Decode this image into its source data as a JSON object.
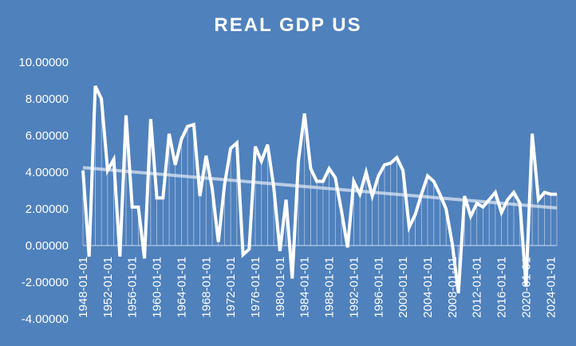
{
  "chart_data": {
    "type": "line",
    "title": "REAL GDP US",
    "xlabel": "",
    "ylabel": "",
    "ylim": [
      -4,
      10
    ],
    "y_ticks": [
      "-4.00000",
      "-2.00000",
      "0.00000",
      "2.00000",
      "4.00000",
      "6.00000",
      "8.00000",
      "10.00000"
    ],
    "x_tick_labels": [
      "1948-01-01",
      "1952-01-01",
      "1956-01-01",
      "1960-01-01",
      "1964-01-01",
      "1968-01-01",
      "1972-01-01",
      "1976-01-01",
      "1980-01-01",
      "1984-01-01",
      "1988-01-01",
      "1992-01-01",
      "1996-01-01",
      "2000-01-01",
      "2004-01-01",
      "2008-01-01",
      "2012-01-01",
      "2016-01-01",
      "2020-01-01",
      "2024-01-01"
    ],
    "x": [
      "1948-01-01",
      "1949-01-01",
      "1950-01-01",
      "1951-01-01",
      "1952-01-01",
      "1953-01-01",
      "1954-01-01",
      "1955-01-01",
      "1956-01-01",
      "1957-01-01",
      "1958-01-01",
      "1959-01-01",
      "1960-01-01",
      "1961-01-01",
      "1962-01-01",
      "1963-01-01",
      "1964-01-01",
      "1965-01-01",
      "1966-01-01",
      "1967-01-01",
      "1968-01-01",
      "1969-01-01",
      "1970-01-01",
      "1971-01-01",
      "1972-01-01",
      "1973-01-01",
      "1974-01-01",
      "1975-01-01",
      "1976-01-01",
      "1977-01-01",
      "1978-01-01",
      "1979-01-01",
      "1980-01-01",
      "1981-01-01",
      "1982-01-01",
      "1983-01-01",
      "1984-01-01",
      "1985-01-01",
      "1986-01-01",
      "1987-01-01",
      "1988-01-01",
      "1989-01-01",
      "1990-01-01",
      "1991-01-01",
      "1992-01-01",
      "1993-01-01",
      "1994-01-01",
      "1995-01-01",
      "1996-01-01",
      "1997-01-01",
      "1998-01-01",
      "1999-01-01",
      "2000-01-01",
      "2001-01-01",
      "2002-01-01",
      "2003-01-01",
      "2004-01-01",
      "2005-01-01",
      "2006-01-01",
      "2007-01-01",
      "2008-01-01",
      "2009-01-01",
      "2010-01-01",
      "2011-01-01",
      "2012-01-01",
      "2013-01-01",
      "2014-01-01",
      "2015-01-01",
      "2016-01-01",
      "2017-01-01",
      "2018-01-01",
      "2019-01-01",
      "2020-01-01",
      "2021-01-01",
      "2022-01-01",
      "2023-01-01",
      "2024-01-01",
      "2025-01-01"
    ],
    "series": [
      {
        "values": [
          4.1,
          -0.6,
          8.7,
          8.0,
          4.1,
          4.7,
          -0.6,
          7.1,
          2.1,
          2.1,
          -0.7,
          6.9,
          2.6,
          2.6,
          6.1,
          4.4,
          5.8,
          6.5,
          6.6,
          2.7,
          4.9,
          3.1,
          0.2,
          3.3,
          5.3,
          5.6,
          -0.5,
          -0.2,
          5.4,
          4.6,
          5.5,
          3.2,
          -0.3,
          2.5,
          -1.8,
          4.6,
          7.2,
          4.2,
          3.5,
          3.5,
          4.2,
          3.7,
          1.9,
          -0.1,
          3.5,
          2.8,
          4.0,
          2.7,
          3.8,
          4.4,
          4.5,
          4.8,
          4.1,
          1.0,
          1.7,
          2.8,
          3.8,
          3.5,
          2.8,
          2.0,
          0.1,
          -2.6,
          2.7,
          1.6,
          2.3,
          2.1,
          2.5,
          2.9,
          1.8,
          2.5,
          2.9,
          2.3,
          -2.2,
          6.1,
          2.5,
          2.9,
          2.8,
          2.8
        ]
      }
    ],
    "trendline": {
      "start": 4.25,
      "end": 2.05
    },
    "grid": false,
    "colors": {
      "background": "#4f81bd",
      "line": "#ffffff",
      "drop_lines": "#ffffff",
      "trendline": "#dbe5f1"
    }
  }
}
